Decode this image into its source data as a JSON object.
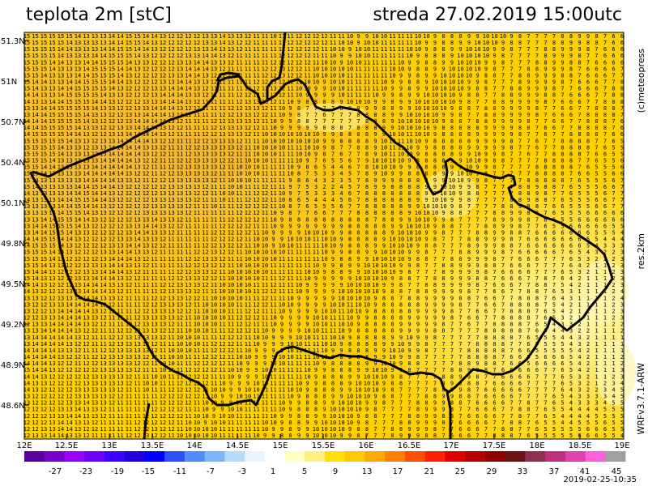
{
  "header": {
    "title": "teplota 2m [stC]",
    "datetime": "streda 27.02.2019 15:00utc"
  },
  "side_labels": {
    "credit": "(c)meteopress",
    "resolution": "res.2km",
    "model": "WRFv3.7.1-ARW"
  },
  "footer": {
    "run_time": "2019-02-25-10:35"
  },
  "map": {
    "lat_labels": [
      "51.3N",
      "51N",
      "50.7N",
      "50.4N",
      "50.1N",
      "49.8N",
      "49.5N",
      "49.2N",
      "48.9N",
      "48.6N"
    ],
    "lon_labels": [
      "12E",
      "12.5E",
      "13E",
      "13.5E",
      "14E",
      "14.5E",
      "15E",
      "15.5E",
      "16E",
      "16.5E",
      "17E",
      "17.5E",
      "18E",
      "18.5E",
      "19E"
    ],
    "variable": "2 m air temperature",
    "unit": "stC",
    "value_range": [
      1,
      15
    ],
    "colors": {
      "field_warm": "#f0b030",
      "field_mid": "#ffd400",
      "field_cool": "#fff080",
      "border": "#000000",
      "values": "#000000"
    }
  },
  "colorbar": {
    "labels": [
      "-27",
      "-23",
      "-19",
      "-15",
      "-11",
      "-7",
      "-3",
      "1",
      "5",
      "9",
      "13",
      "17",
      "21",
      "25",
      "29",
      "33",
      "37",
      "41",
      "45"
    ],
    "colors": [
      "#5a00a0",
      "#7800c8",
      "#9a00ff",
      "#6e00ff",
      "#4000ff",
      "#2000e0",
      "#0000ff",
      "#2a50ff",
      "#4f8cff",
      "#7cb4ff",
      "#b4dcff",
      "#e8f4ff",
      "#ffffff",
      "#ffffc0",
      "#fff080",
      "#ffe000",
      "#ffc800",
      "#ffa800",
      "#ff8000",
      "#ff5000",
      "#ff2000",
      "#e00000",
      "#b80000",
      "#900000",
      "#701010",
      "#903050",
      "#c03080",
      "#e040b0",
      "#ff60e0",
      "#a0a0a0"
    ]
  }
}
